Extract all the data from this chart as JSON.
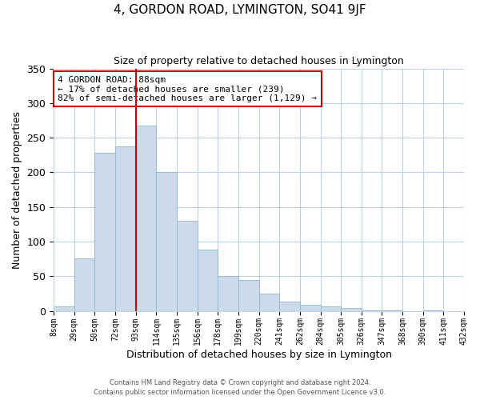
{
  "title": "4, GORDON ROAD, LYMINGTON, SO41 9JF",
  "subtitle": "Size of property relative to detached houses in Lymington",
  "xlabel": "Distribution of detached houses by size in Lymington",
  "ylabel": "Number of detached properties",
  "bar_labels": [
    "8sqm",
    "29sqm",
    "50sqm",
    "72sqm",
    "93sqm",
    "114sqm",
    "135sqm",
    "156sqm",
    "178sqm",
    "199sqm",
    "220sqm",
    "241sqm",
    "262sqm",
    "284sqm",
    "305sqm",
    "326sqm",
    "347sqm",
    "368sqm",
    "390sqm",
    "411sqm",
    "432sqm"
  ],
  "bar_values": [
    6,
    76,
    228,
    237,
    267,
    200,
    130,
    88,
    50,
    45,
    25,
    13,
    9,
    6,
    4,
    1,
    1,
    0,
    1,
    0
  ],
  "bar_color": "#ccdaeb",
  "bar_edge_color": "#8fb4d0",
  "vline_x": 4,
  "vline_color": "#cc0000",
  "ylim": [
    0,
    350
  ],
  "yticks": [
    0,
    50,
    100,
    150,
    200,
    250,
    300,
    350
  ],
  "annotation_title": "4 GORDON ROAD: 88sqm",
  "annotation_line1": "← 17% of detached houses are smaller (239)",
  "annotation_line2": "82% of semi-detached houses are larger (1,129) →",
  "annotation_box_color": "#ffffff",
  "annotation_box_edge": "#cc0000",
  "footer1": "Contains HM Land Registry data © Crown copyright and database right 2024.",
  "footer2": "Contains public sector information licensed under the Open Government Licence v3.0.",
  "background_color": "#ffffff",
  "grid_color": "#c0d0e0"
}
